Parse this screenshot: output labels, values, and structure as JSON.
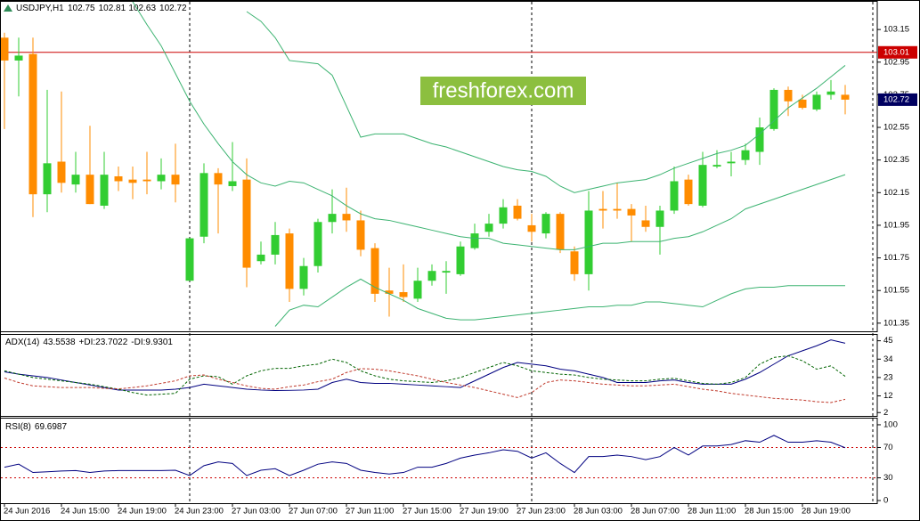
{
  "chart_data": [
    {
      "type": "candlestick",
      "title": "USDJPY,H1",
      "categories": [
        "24 Jun 2016",
        null,
        null,
        null,
        "24 Jun 15:00",
        null,
        null,
        null,
        "24 Jun 19:00",
        null,
        null,
        null,
        "24 Jun 23:00",
        null,
        null,
        null,
        "27 Jun 03:00",
        null,
        null,
        null,
        "27 Jun 07:00",
        null,
        null,
        null,
        "27 Jun 11:00",
        null,
        null,
        null,
        "27 Jun 15:00",
        null,
        null,
        null,
        "27 Jun 19:00",
        null,
        null,
        null,
        "27 Jun 23:00",
        null,
        null,
        null,
        "28 Jun 03:00",
        null,
        null,
        null,
        "28 Jun 07:00",
        null,
        null,
        null,
        "28 Jun 11:00",
        null,
        null,
        null,
        "28 Jun 15:00",
        null,
        null,
        null,
        "28 Jun 19:00",
        null,
        null,
        null
      ],
      "open": [
        103.1,
        102.96,
        103.0,
        102.14,
        102.34,
        102.2,
        102.26,
        102.07,
        102.25,
        102.23,
        102.23,
        102.22,
        102.26,
        101.61,
        101.88,
        102.27,
        102.19,
        102.23,
        101.73,
        101.77,
        101.9,
        101.56,
        101.7,
        101.97,
        102.02,
        101.98,
        101.81,
        101.55,
        101.54,
        101.5,
        101.61,
        101.66,
        101.65,
        101.81,
        101.91,
        101.96,
        102.07,
        101.95,
        101.9,
        102.02,
        101.79,
        101.65,
        102.05,
        102.05,
        102.05,
        101.98,
        101.94,
        102.04,
        102.23,
        102.07,
        102.31,
        102.33,
        102.35,
        102.4,
        102.54,
        102.78,
        102.72,
        102.66,
        102.75,
        102.75
      ],
      "high": [
        103.13,
        103.1,
        103.1,
        102.78,
        102.77,
        102.4,
        102.56,
        102.4,
        102.31,
        102.31,
        102.4,
        102.36,
        102.45,
        101.87,
        102.33,
        102.3,
        102.46,
        102.36,
        101.85,
        101.97,
        101.93,
        101.75,
        101.99,
        102.17,
        102.18,
        102.04,
        101.84,
        101.69,
        101.71,
        101.69,
        101.71,
        101.73,
        101.85,
        101.96,
        102.02,
        102.11,
        102.11,
        102.02,
        102.03,
        102.03,
        101.82,
        102.16,
        102.16,
        102.21,
        102.08,
        102.07,
        102.07,
        102.31,
        102.26,
        102.4,
        102.41,
        102.4,
        102.45,
        102.61,
        102.79,
        102.8,
        102.75,
        102.77,
        102.84,
        102.81
      ],
      "low": [
        102.54,
        102.74,
        102.0,
        102.03,
        102.15,
        102.15,
        102.08,
        102.05,
        102.16,
        102.11,
        102.14,
        102.17,
        102.09,
        101.61,
        101.84,
        101.9,
        102.16,
        101.57,
        101.71,
        101.71,
        101.48,
        101.52,
        101.66,
        101.9,
        101.91,
        101.76,
        101.48,
        101.39,
        101.48,
        101.48,
        101.58,
        101.53,
        101.64,
        101.8,
        101.88,
        101.93,
        101.98,
        101.85,
        101.87,
        101.78,
        101.61,
        101.55,
        101.93,
        101.99,
        101.85,
        101.91,
        101.77,
        102.02,
        102.07,
        102.06,
        102.3,
        102.25,
        102.32,
        102.32,
        102.53,
        102.62,
        102.66,
        102.65,
        102.72,
        102.63
      ],
      "close": [
        102.96,
        102.99,
        102.14,
        102.33,
        102.21,
        102.26,
        102.08,
        102.26,
        102.22,
        102.21,
        102.22,
        102.26,
        102.2,
        101.87,
        102.27,
        102.2,
        102.22,
        101.69,
        101.77,
        101.89,
        101.56,
        101.7,
        101.97,
        102.02,
        101.98,
        101.8,
        101.53,
        101.53,
        101.51,
        101.61,
        101.67,
        101.67,
        101.82,
        101.9,
        101.96,
        102.06,
        101.99,
        101.91,
        102.02,
        101.8,
        101.65,
        102.04,
        102.04,
        102.04,
        102.01,
        101.94,
        102.04,
        102.22,
        102.08,
        102.32,
        102.32,
        102.34,
        102.41,
        102.55,
        102.78,
        102.71,
        102.67,
        102.75,
        102.77,
        102.72
      ],
      "up_color": "#32cd32",
      "down_color": "#ff8c00",
      "series": [
        {
          "color": "#3cb371",
          "values": [
            null,
            null,
            null,
            null,
            null,
            null,
            null,
            null,
            null,
            null,
            null,
            null,
            null,
            null,
            null,
            null,
            null,
            103.26,
            103.2,
            103.1,
            102.96,
            102.95,
            102.94,
            102.87,
            102.68,
            102.49,
            102.51,
            102.51,
            102.51,
            102.48,
            102.45,
            102.43,
            102.4,
            102.37,
            102.34,
            102.31,
            102.29,
            102.28,
            102.25,
            102.19,
            102.15,
            102.17,
            102.19,
            102.21,
            102.22,
            102.23,
            102.26,
            102.3,
            102.33,
            102.36,
            102.39,
            102.41,
            102.44,
            102.51,
            102.59,
            102.67,
            102.73,
            102.79,
            102.86,
            102.93
          ]
        },
        {
          "color": "#3cb371",
          "values": [
            null,
            null,
            null,
            null,
            null,
            null,
            null,
            null,
            null,
            103.32,
            103.18,
            103.05,
            102.88,
            102.71,
            102.57,
            102.45,
            102.34,
            102.26,
            102.21,
            102.19,
            102.22,
            102.21,
            102.17,
            102.13,
            102.07,
            102.02,
            101.99,
            101.98,
            101.96,
            101.94,
            101.92,
            101.9,
            101.88,
            101.87,
            101.87,
            101.84,
            101.83,
            101.82,
            101.81,
            101.8,
            101.8,
            101.82,
            101.84,
            101.84,
            101.85,
            101.85,
            101.85,
            101.87,
            101.88,
            101.91,
            101.95,
            101.99,
            102.05,
            102.08,
            102.11,
            102.14,
            102.17,
            102.2,
            102.23,
            102.26
          ]
        },
        {
          "color": "#3cb371",
          "values": [
            null,
            null,
            null,
            null,
            null,
            null,
            null,
            null,
            null,
            null,
            null,
            null,
            null,
            null,
            null,
            null,
            null,
            null,
            null,
            101.33,
            101.43,
            101.46,
            101.45,
            101.51,
            101.57,
            101.62,
            101.57,
            101.53,
            101.49,
            101.44,
            101.41,
            101.38,
            101.37,
            101.37,
            101.38,
            101.39,
            101.4,
            101.41,
            101.42,
            101.43,
            101.44,
            101.45,
            101.45,
            101.46,
            101.46,
            101.48,
            101.48,
            101.47,
            101.46,
            101.45,
            101.49,
            101.53,
            101.56,
            101.57,
            101.57,
            101.58,
            101.58,
            101.58,
            101.58,
            101.58
          ]
        }
      ],
      "hline": 103.01,
      "hline_color": "#cc0000",
      "last_price_color": "#000060",
      "ylim": [
        101.3,
        103.32
      ],
      "yticks": [
        101.35,
        101.55,
        101.75,
        101.95,
        102.15,
        102.35,
        102.55,
        102.75,
        102.95,
        103.15
      ],
      "watermark": "freshforex.com",
      "watermark_color": "#8cbf3f"
    },
    {
      "type": "line",
      "series": [
        {
          "name": "ADX(14)",
          "color": "#000080",
          "dashed": false,
          "values": [
            26.4,
            25,
            24,
            23,
            21.5,
            20,
            18.5,
            17,
            15.5,
            15.5,
            15.5,
            15.5,
            16,
            17,
            19,
            18,
            17,
            16,
            15.5,
            15.2,
            15.3,
            15.5,
            16,
            20,
            22,
            20,
            19.5,
            19.5,
            19,
            18.5,
            18,
            17.5,
            17,
            21,
            25,
            29,
            32,
            31,
            30,
            28,
            27,
            25,
            23,
            20,
            20,
            20,
            21,
            21.5,
            20,
            19,
            19,
            19,
            22,
            26,
            31,
            36,
            39,
            42,
            45.5,
            43.5538
          ]
        },
        {
          "name": "+DI:",
          "color": "#006400",
          "dashed": true,
          "values": [
            27,
            25,
            23,
            22,
            21,
            20,
            19,
            17.5,
            16,
            14,
            12.5,
            13,
            13.5,
            22,
            24,
            23.5,
            19,
            24,
            27,
            28.5,
            28.5,
            30,
            31,
            34,
            32,
            27,
            24,
            22,
            21,
            20.5,
            20,
            21,
            23,
            26,
            29,
            32,
            30,
            27,
            26,
            25,
            24.5,
            23,
            22,
            21.5,
            21,
            21,
            22,
            22.5,
            21,
            19.5,
            19,
            20,
            23,
            31,
            35,
            36,
            33,
            28,
            30,
            23.7022
          ]
        },
        {
          "name": "-DI:",
          "color": "#c0392b",
          "dashed": true,
          "values": [
            22.7,
            20,
            18,
            17.5,
            17,
            17,
            17,
            16.5,
            16.2,
            17,
            18,
            19.5,
            21,
            24,
            24.5,
            22,
            20,
            18,
            16.5,
            16,
            17.5,
            18.5,
            20.5,
            22,
            26,
            28.3,
            28,
            27,
            25.5,
            24,
            22,
            20,
            18.5,
            17,
            15,
            13,
            11,
            14,
            20,
            21.5,
            21,
            20,
            19,
            18.5,
            18,
            18,
            18.5,
            19,
            17.5,
            16,
            15,
            13.5,
            12.5,
            11.5,
            10.5,
            10,
            9.5,
            8.5,
            8,
            9.9301
          ]
        }
      ],
      "ylim": [
        0,
        48
      ],
      "yticks": [
        2,
        12,
        23,
        34,
        45
      ]
    },
    {
      "type": "line",
      "series": [
        {
          "name": "RSI(8)",
          "color": "#000080",
          "dashed": false,
          "values": [
            44,
            48,
            37,
            38,
            39,
            39.5,
            37,
            39,
            39.5,
            39.5,
            39.5,
            39.5,
            40,
            33,
            46,
            51,
            49,
            33,
            40,
            42,
            33,
            40,
            48,
            51,
            49,
            40,
            37,
            35,
            37,
            44,
            44,
            49,
            56,
            60,
            63,
            67,
            65,
            56,
            63,
            49,
            37,
            58,
            58,
            60,
            58,
            54,
            58,
            70,
            60,
            72,
            72,
            74,
            79,
            77,
            86,
            77,
            77,
            79,
            77,
            69.6987
          ]
        }
      ],
      "levels": [
        70,
        30
      ],
      "level_color": "#cc0000",
      "ylim": [
        -3.5,
        107
      ],
      "yticks": [
        0,
        30,
        70,
        100
      ]
    }
  ]
}
